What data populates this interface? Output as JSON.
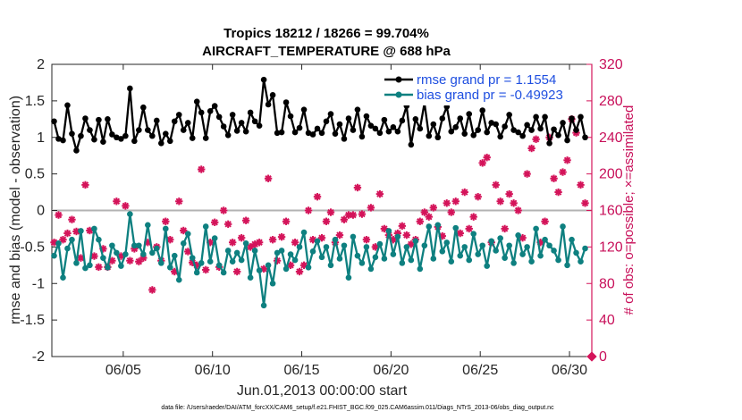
{
  "title": {
    "line1": "Tropics 18212 / 18266 = 99.704%",
    "line2": "AIRCRAFT_TEMPERATURE @ 688 hPa"
  },
  "footer": "data file: /Users/raeder/DAI/ATM_forcXX/CAM6_setup/f.e21.FHIST_BGC.f09_025.CAM6assim.011/Diags_NTrS_2013-06/obs_diag_output.nc",
  "colors": {
    "rmse": "#000000",
    "bias": "#0e8080",
    "obs": "#d4145a",
    "zero_line": "#b3b3b3"
  },
  "chart_data": {
    "type": "line",
    "xlabel": "Jun.01,2013 00:00:00 start",
    "ylabel": "rmse and bias (model - observation)",
    "y2label": "# of obs: o=possible; ×=assimilated",
    "xlim": [
      1.0,
      31.25
    ],
    "ylim": [
      -2,
      2
    ],
    "y2lim": [
      0,
      320
    ],
    "x_ticks": [
      5,
      10,
      15,
      20,
      25,
      30
    ],
    "x_tick_labels": [
      "06/05",
      "06/10",
      "06/15",
      "06/20",
      "06/25",
      "06/30"
    ],
    "y_ticks": [
      -2,
      -1.5,
      -1,
      -0.5,
      0,
      0.5,
      1,
      1.5,
      2
    ],
    "y_tick_labels": [
      "-2",
      "-1.5",
      "-1",
      "-0.5",
      "0",
      "0.5",
      "1",
      "1.5",
      "2"
    ],
    "y2_ticks": [
      0,
      40,
      80,
      120,
      160,
      200,
      240,
      280,
      320
    ],
    "y2_tick_labels": [
      "0",
      "40",
      "80",
      "120",
      "160",
      "200",
      "240",
      "280",
      "320"
    ],
    "x_step_days": 0.25,
    "x_start": 1.125,
    "legend_position": "top-right",
    "series": [
      {
        "name": "rmse",
        "label": "rmse grand pr = 1.1554",
        "axis": "left",
        "values": [
          1.22,
          0.98,
          0.96,
          1.44,
          1.05,
          0.82,
          1.02,
          1.26,
          1.1,
          0.97,
          1.24,
          0.94,
          1.25,
          1.04,
          1.0,
          0.98,
          1.02,
          1.67,
          0.95,
          1.1,
          1.41,
          1.1,
          1.02,
          1.23,
          0.92,
          1.05,
          0.95,
          1.22,
          1.31,
          1.1,
          1.2,
          0.99,
          1.49,
          1.34,
          0.99,
          1.36,
          1.43,
          1.28,
          1.15,
          1.03,
          1.31,
          1.09,
          1.2,
          1.08,
          1.34,
          1.22,
          1.16,
          1.79,
          1.45,
          1.58,
          1.06,
          1.07,
          1.48,
          1.29,
          1.07,
          1.13,
          1.38,
          1.06,
          1.04,
          1.12,
          1.06,
          1.22,
          1.32,
          1.05,
          1.18,
          0.98,
          1.26,
          1.1,
          1.38,
          1.01,
          1.29,
          1.16,
          1.12,
          1.06,
          1.24,
          1.08,
          1.14,
          1.08,
          1.23,
          1.43,
          0.9,
          1.25,
          1.12,
          1.47,
          1.02,
          1.18,
          1.0,
          1.26,
          1.42,
          1.08,
          1.14,
          1.26,
          1.05,
          1.32,
          1.03,
          1.1,
          1.37,
          1.07,
          1.2,
          1.18,
          1.01,
          1.15,
          1.31,
          1.1,
          1.07,
          1.02,
          1.17,
          1.1,
          1.28,
          1.12,
          1.28,
          0.92,
          1.11,
          1.03,
          1.2,
          0.96,
          1.26,
          1.1,
          1.28,
          1.0
        ]
      },
      {
        "name": "bias",
        "label": "bias grand pr = -0.49923",
        "axis": "left",
        "values": [
          -0.62,
          -0.45,
          -0.92,
          -0.52,
          -0.4,
          -0.72,
          -0.28,
          -0.79,
          -0.75,
          -0.25,
          -0.4,
          -0.65,
          -0.78,
          -0.48,
          -0.58,
          -0.76,
          -0.6,
          -0.05,
          -0.48,
          -0.48,
          -0.6,
          -0.2,
          -0.58,
          -0.52,
          -0.72,
          -0.25,
          -0.78,
          -0.62,
          -0.95,
          -0.45,
          -0.32,
          -0.65,
          -0.85,
          -0.72,
          -0.22,
          -0.7,
          -0.38,
          -0.75,
          -0.85,
          -0.55,
          -0.7,
          -0.58,
          -0.68,
          -0.45,
          -0.92,
          -0.55,
          -0.82,
          -1.3,
          -0.75,
          -1.0,
          -0.58,
          -0.55,
          -0.8,
          -0.6,
          -0.68,
          -0.5,
          -0.3,
          -0.78,
          -0.56,
          -0.42,
          -0.64,
          -0.5,
          -0.75,
          -0.4,
          -0.66,
          -0.48,
          -0.92,
          -0.36,
          -0.62,
          -0.72,
          -0.5,
          -0.8,
          -0.64,
          -0.46,
          -0.66,
          -0.28,
          -0.6,
          -0.36,
          -0.72,
          -0.5,
          -0.68,
          -0.42,
          -0.8,
          -0.48,
          -0.22,
          -0.66,
          -0.2,
          -0.56,
          -0.44,
          -0.7,
          -0.24,
          -0.62,
          -0.5,
          -0.68,
          -0.32,
          -0.6,
          -0.48,
          -0.76,
          -0.42,
          -0.55,
          -0.38,
          -0.65,
          -0.48,
          -0.72,
          -0.34,
          -0.6,
          -0.5,
          -0.7,
          -0.25,
          -0.62,
          -0.4,
          -0.48,
          -0.55,
          -0.68,
          -0.22,
          -0.75,
          -0.4,
          -0.58,
          -0.7,
          -0.52
        ]
      },
      {
        "name": "obs",
        "label": "# of obs",
        "axis": "right",
        "marker": "asterisk",
        "values": [
          125,
          155,
          128,
          135,
          150,
          137,
          108,
          188,
          138,
          110,
          98,
          118,
          98,
          105,
          170,
          110,
          165,
          105,
          118,
          104,
          108,
          125,
          73,
          120,
          105,
          148,
          128,
          93,
          170,
          138,
          115,
          103,
          100,
          205,
          95,
          125,
          147,
          98,
          160,
          145,
          125,
          93,
          130,
          149,
          120,
          123,
          125,
          96,
          195,
          128,
          105,
          131,
          148,
          100,
          125,
          93,
          100,
          160,
          128,
          175,
          130,
          148,
          158,
          125,
          133,
          150,
          155,
          155,
          185,
          156,
          128,
          163,
          120,
          178,
          140,
          133,
          128,
          135,
          143,
          133,
          123,
          128,
          148,
          158,
          153,
          163,
          142,
          132,
          168,
          158,
          170,
          135,
          180,
          140,
          153,
          175,
          212,
          218,
          125,
          188,
          170,
          140,
          178,
          168,
          160,
          130,
          200,
          228,
          238,
          125,
          148,
          240,
          195,
          180,
          202,
          215,
          260,
          245,
          188,
          168
        ]
      }
    ]
  }
}
